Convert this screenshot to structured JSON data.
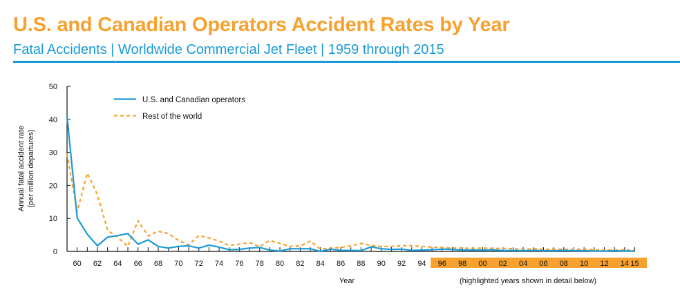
{
  "header": {
    "title": "U.S. and Canadian Operators Accident Rates by Year",
    "subtitle": "Fatal Accidents | Worldwide Commercial Jet Fleet | 1959 through 2015"
  },
  "colors": {
    "title": "#f7a12f",
    "subtitle": "#1a9ad6",
    "us_series": "#1a9ad6",
    "row_series": "#f7a12f",
    "highlight": "#f7a12f"
  },
  "chart_data": {
    "type": "line",
    "title": "U.S. and Canadian Operators Accident Rates by Year",
    "subtitle": "Fatal Accidents | Worldwide Commercial Jet Fleet | 1959 through 2015",
    "xlabel": "Year",
    "xlabel_note": "(highlighted years shown in detail below)",
    "ylabel": "Annual fatal accident rate",
    "ylabel_line2": "(per million departures)",
    "ylim": [
      0,
      50
    ],
    "xlim": [
      1959,
      2015
    ],
    "yticks": [
      0,
      10,
      20,
      30,
      40,
      50
    ],
    "xtick_labels": [
      {
        "year": 1960,
        "label": "60"
      },
      {
        "year": 1962,
        "label": "62"
      },
      {
        "year": 1964,
        "label": "64"
      },
      {
        "year": 1966,
        "label": "66"
      },
      {
        "year": 1968,
        "label": "68"
      },
      {
        "year": 1970,
        "label": "70"
      },
      {
        "year": 1972,
        "label": "72"
      },
      {
        "year": 1974,
        "label": "74"
      },
      {
        "year": 1976,
        "label": "76"
      },
      {
        "year": 1978,
        "label": "78"
      },
      {
        "year": 1980,
        "label": "80"
      },
      {
        "year": 1982,
        "label": "82"
      },
      {
        "year": 1984,
        "label": "84"
      },
      {
        "year": 1986,
        "label": "86"
      },
      {
        "year": 1988,
        "label": "88"
      },
      {
        "year": 1990,
        "label": "90"
      },
      {
        "year": 1992,
        "label": "92"
      },
      {
        "year": 1994,
        "label": "94"
      },
      {
        "year": 1996,
        "label": "96"
      },
      {
        "year": 1998,
        "label": "98"
      },
      {
        "year": 2000,
        "label": "00"
      },
      {
        "year": 2002,
        "label": "02"
      },
      {
        "year": 2004,
        "label": "04"
      },
      {
        "year": 2006,
        "label": "06"
      },
      {
        "year": 2008,
        "label": "08"
      },
      {
        "year": 2010,
        "label": "10"
      },
      {
        "year": 2012,
        "label": "12"
      },
      {
        "year": 2014,
        "label": "14"
      },
      {
        "year": 2015,
        "label": "15"
      }
    ],
    "highlight_range": [
      1996,
      2015
    ],
    "grid": false,
    "legend_position": "top-left",
    "x": [
      1959,
      1960,
      1961,
      1962,
      1963,
      1964,
      1965,
      1966,
      1967,
      1968,
      1969,
      1970,
      1971,
      1972,
      1973,
      1974,
      1975,
      1976,
      1977,
      1978,
      1979,
      1980,
      1981,
      1982,
      1983,
      1984,
      1985,
      1986,
      1987,
      1988,
      1989,
      1990,
      1991,
      1992,
      1993,
      1994,
      1995,
      1996,
      1997,
      1998,
      1999,
      2000,
      2001,
      2002,
      2003,
      2004,
      2005,
      2006,
      2007,
      2008,
      2009,
      2010,
      2011,
      2012,
      2013,
      2014,
      2015
    ],
    "series": [
      {
        "name": "U.S. and Canadian operators",
        "style": "solid",
        "values": [
          41.0,
          10.1,
          5.2,
          1.7,
          4.3,
          4.8,
          5.4,
          2.2,
          3.5,
          1.5,
          1.0,
          1.5,
          1.7,
          1.0,
          1.9,
          1.3,
          0.5,
          0.6,
          1.0,
          1.2,
          0.4,
          0.1,
          0.8,
          0.8,
          0.8,
          0.0,
          0.7,
          0.3,
          0.3,
          0.2,
          1.4,
          0.8,
          0.6,
          0.7,
          0.3,
          0.4,
          0.5,
          0.7,
          0.6,
          0.4,
          0.4,
          0.4,
          0.5,
          0.2,
          0.3,
          0.2,
          0.3,
          0.2,
          0.2,
          0.3,
          0.2,
          0.2,
          0.1,
          0.1,
          0.2,
          0.1,
          0.1
        ]
      },
      {
        "name": "Rest of the world",
        "style": "dashed",
        "values": [
          29.6,
          12.1,
          23.7,
          17.2,
          6.4,
          4.3,
          1.5,
          9.3,
          4.7,
          6.1,
          5.4,
          3.3,
          2.0,
          4.8,
          4.1,
          3.1,
          1.8,
          2.2,
          2.7,
          1.4,
          3.3,
          2.4,
          1.5,
          1.7,
          3.1,
          0.7,
          1.0,
          1.2,
          1.7,
          2.4,
          1.8,
          1.5,
          1.5,
          1.7,
          1.7,
          1.5,
          1.3,
          1.2,
          1.0,
          1.0,
          0.9,
          1.0,
          0.9,
          0.9,
          0.8,
          0.6,
          0.8,
          0.6,
          0.7,
          0.6,
          0.6,
          0.7,
          0.5,
          0.4,
          0.4,
          0.5,
          0.3
        ]
      }
    ]
  }
}
